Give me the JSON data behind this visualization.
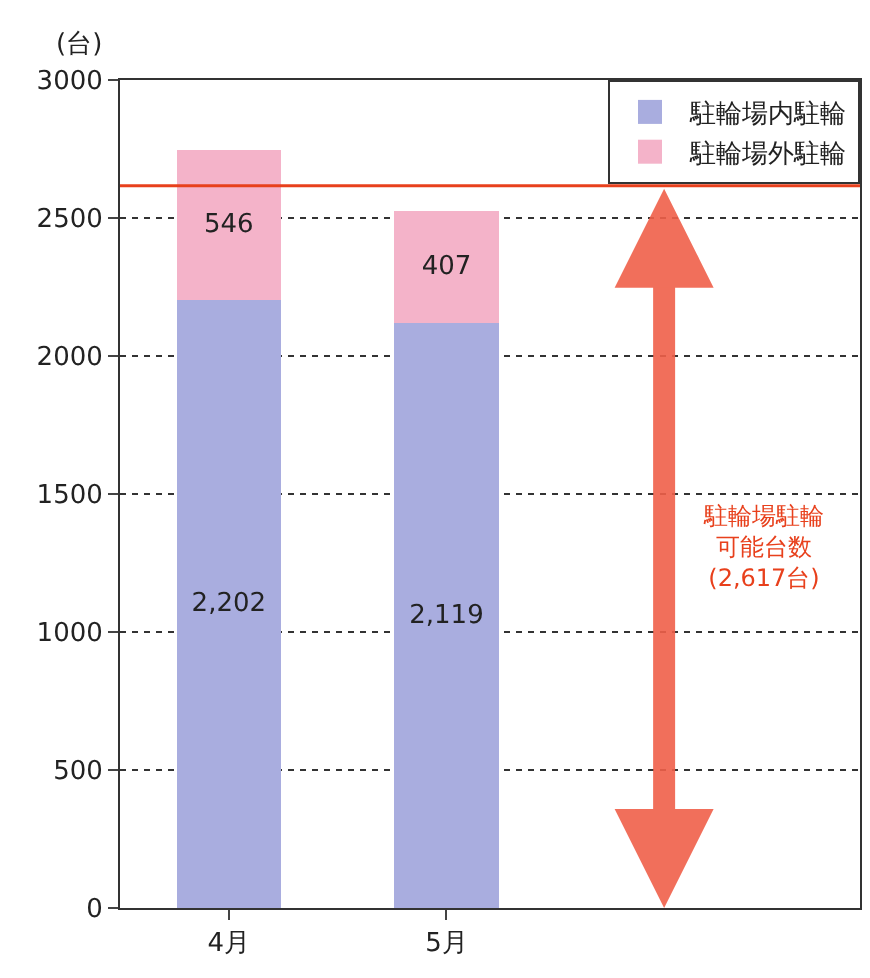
{
  "chart_data": {
    "type": "bar",
    "stacked": true,
    "ylabel": "(台)",
    "categories": [
      "4月",
      "5月"
    ],
    "series": [
      {
        "name": "駐輪場内駐輪",
        "color": "#a9addf",
        "values": [
          2202,
          2119
        ],
        "value_labels": [
          "2,202",
          "2,119"
        ]
      },
      {
        "name": "駐輪場外駐輪",
        "color": "#f4b3c9",
        "values": [
          546,
          407
        ],
        "value_labels": [
          "546",
          "407"
        ]
      }
    ],
    "ylim": [
      0,
      3000
    ],
    "yticks": [
      0,
      500,
      1000,
      1500,
      2000,
      2500,
      3000
    ],
    "grid": "y",
    "legend": "top right",
    "ref_lines": [
      {
        "axis": "y",
        "value": 2617,
        "label": "駐輪場駐輪可能台数(2,617台)",
        "color": "#e8401c"
      }
    ]
  }
}
